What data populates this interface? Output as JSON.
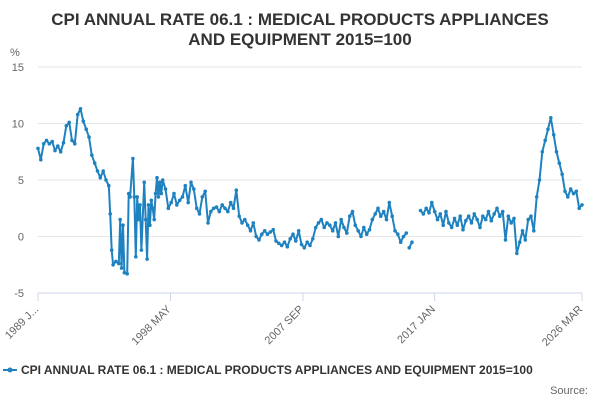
{
  "chart_data": {
    "type": "line",
    "title_lines": [
      "CPI ANNUAL RATE 06.1 : MEDICAL PRODUCTS APPLIANCES",
      "AND EQUIPMENT 2015=100"
    ],
    "y_unit": "%",
    "ylim": [
      -5,
      15
    ],
    "y_ticks": [
      -5,
      0,
      5,
      10,
      15
    ],
    "y_tick_labels": [
      "-5",
      "0",
      "5",
      "10",
      "15"
    ],
    "xlim": [
      1989.0,
      2026.2
    ],
    "x_ticks": [
      {
        "value": 1989.0,
        "label": "1989 J..."
      },
      {
        "value": 1998.35,
        "label": "1998 MAY"
      },
      {
        "value": 2007.7,
        "label": "2007 SEP"
      },
      {
        "value": 2017.0,
        "label": "2017 JAN"
      },
      {
        "value": 2026.2,
        "label": "2026 MAR"
      }
    ],
    "series": [
      {
        "name": "CPI ANNUAL RATE 06.1 : MEDICAL PRODUCTS APPLIANCES AND EQUIPMENT 2015=100",
        "color": "#1f82c0",
        "points": [
          [
            1989.0,
            7.8
          ],
          [
            1989.2,
            6.8
          ],
          [
            1989.4,
            8.2
          ],
          [
            1989.6,
            8.5
          ],
          [
            1989.8,
            8.2
          ],
          [
            1990.0,
            8.4
          ],
          [
            1990.2,
            7.6
          ],
          [
            1990.4,
            8.0
          ],
          [
            1990.6,
            7.5
          ],
          [
            1990.8,
            8.3
          ],
          [
            1991.0,
            9.8
          ],
          [
            1991.2,
            10.1
          ],
          [
            1991.4,
            8.5
          ],
          [
            1991.6,
            8.2
          ],
          [
            1991.8,
            10.8
          ],
          [
            1992.0,
            11.3
          ],
          [
            1992.2,
            10.2
          ],
          [
            1992.4,
            9.5
          ],
          [
            1992.6,
            8.8
          ],
          [
            1992.8,
            7.2
          ],
          [
            1993.0,
            6.5
          ],
          [
            1993.2,
            5.8
          ],
          [
            1993.4,
            5.2
          ],
          [
            1993.6,
            5.8
          ],
          [
            1993.8,
            5.0
          ],
          [
            1994.0,
            4.5
          ],
          [
            1994.1,
            2.0
          ],
          [
            1994.2,
            -1.2
          ],
          [
            1994.3,
            -2.5
          ],
          [
            1994.5,
            -2.2
          ],
          [
            1994.7,
            -2.4
          ],
          [
            1994.8,
            1.5
          ],
          [
            1994.9,
            -2.8
          ],
          [
            1995.0,
            1.0
          ],
          [
            1995.1,
            -3.2
          ],
          [
            1995.3,
            -3.3
          ],
          [
            1995.4,
            3.8
          ],
          [
            1995.5,
            3.5
          ],
          [
            1995.7,
            6.9
          ],
          [
            1995.8,
            3.5
          ],
          [
            1995.9,
            -1.8
          ],
          [
            1996.0,
            3.5
          ],
          [
            1996.1,
            1.5
          ],
          [
            1996.2,
            2.8
          ],
          [
            1996.3,
            -1.2
          ],
          [
            1996.5,
            4.8
          ],
          [
            1996.6,
            1.5
          ],
          [
            1996.7,
            -2.0
          ],
          [
            1996.8,
            2.8
          ],
          [
            1996.9,
            1.0
          ],
          [
            1997.0,
            3.2
          ],
          [
            1997.1,
            2.5
          ],
          [
            1997.2,
            1.5
          ],
          [
            1997.3,
            3.8
          ],
          [
            1997.4,
            5.2
          ],
          [
            1997.5,
            3.5
          ],
          [
            1997.6,
            4.8
          ],
          [
            1997.7,
            3.8
          ],
          [
            1997.8,
            5.0
          ],
          [
            1998.0,
            4.2
          ],
          [
            1998.2,
            2.5
          ],
          [
            1998.4,
            3.0
          ],
          [
            1998.6,
            3.8
          ],
          [
            1998.8,
            2.8
          ],
          [
            1999.0,
            3.2
          ],
          [
            1999.2,
            3.5
          ],
          [
            1999.4,
            4.5
          ],
          [
            1999.6,
            3.0
          ],
          [
            1999.8,
            4.8
          ],
          [
            2000.0,
            4.2
          ],
          [
            2000.2,
            2.5
          ],
          [
            2000.4,
            2.0
          ],
          [
            2000.6,
            3.5
          ],
          [
            2000.8,
            4.0
          ],
          [
            2001.0,
            1.2
          ],
          [
            2001.2,
            2.2
          ],
          [
            2001.4,
            2.5
          ],
          [
            2001.6,
            2.6
          ],
          [
            2001.8,
            2.2
          ],
          [
            2002.0,
            2.8
          ],
          [
            2002.2,
            2.5
          ],
          [
            2002.4,
            2.2
          ],
          [
            2002.6,
            3.0
          ],
          [
            2002.8,
            2.5
          ],
          [
            2003.0,
            4.1
          ],
          [
            2003.2,
            1.8
          ],
          [
            2003.4,
            1.2
          ],
          [
            2003.6,
            1.5
          ],
          [
            2003.8,
            1.0
          ],
          [
            2004.0,
            0.5
          ],
          [
            2004.2,
            1.2
          ],
          [
            2004.4,
            0.0
          ],
          [
            2004.6,
            -0.3
          ],
          [
            2004.8,
            0.2
          ],
          [
            2005.0,
            0.5
          ],
          [
            2005.2,
            0.2
          ],
          [
            2005.4,
            0.4
          ],
          [
            2005.6,
            0.6
          ],
          [
            2005.8,
            -0.4
          ],
          [
            2006.0,
            -0.6
          ],
          [
            2006.2,
            -0.8
          ],
          [
            2006.4,
            -0.5
          ],
          [
            2006.6,
            -0.9
          ],
          [
            2006.8,
            -0.2
          ],
          [
            2007.0,
            0.2
          ],
          [
            2007.2,
            -0.4
          ],
          [
            2007.4,
            0.5
          ],
          [
            2007.6,
            -0.7
          ],
          [
            2007.8,
            -1.0
          ],
          [
            2008.0,
            -0.5
          ],
          [
            2008.2,
            -0.8
          ],
          [
            2008.4,
            -0.2
          ],
          [
            2008.6,
            0.8
          ],
          [
            2008.8,
            1.2
          ],
          [
            2009.0,
            1.5
          ],
          [
            2009.2,
            0.8
          ],
          [
            2009.4,
            1.2
          ],
          [
            2009.6,
            1.0
          ],
          [
            2009.8,
            0.5
          ],
          [
            2010.0,
            1.2
          ],
          [
            2010.2,
            0.0
          ],
          [
            2010.4,
            1.5
          ],
          [
            2010.6,
            0.8
          ],
          [
            2010.8,
            0.3
          ],
          [
            2011.0,
            1.8
          ],
          [
            2011.2,
            2.2
          ],
          [
            2011.4,
            1.0
          ],
          [
            2011.6,
            0.5
          ],
          [
            2011.8,
            0.0
          ],
          [
            2012.0,
            0.8
          ],
          [
            2012.2,
            0.2
          ],
          [
            2012.4,
            0.6
          ],
          [
            2012.6,
            1.5
          ],
          [
            2012.8,
            2.0
          ],
          [
            2013.0,
            2.5
          ],
          [
            2013.2,
            1.8
          ],
          [
            2013.4,
            2.2
          ],
          [
            2013.6,
            1.5
          ],
          [
            2013.8,
            3.0
          ],
          [
            2014.0,
            1.8
          ],
          [
            2014.2,
            0.5
          ],
          [
            2014.4,
            0.2
          ],
          [
            2014.6,
            -0.5
          ],
          [
            2014.8,
            0.0
          ],
          [
            2015.0,
            0.3
          ]
        ],
        "points2": [
          [
            2015.2,
            -1.0
          ],
          [
            2015.4,
            -0.5
          ]
        ],
        "points3": [
          [
            2016.0,
            2.3
          ],
          [
            2016.2,
            2.0
          ],
          [
            2016.4,
            2.5
          ],
          [
            2016.6,
            2.1
          ],
          [
            2016.8,
            3.0
          ],
          [
            2017.0,
            2.2
          ],
          [
            2017.2,
            1.5
          ],
          [
            2017.4,
            2.0
          ],
          [
            2017.6,
            1.0
          ],
          [
            2017.8,
            2.2
          ],
          [
            2018.0,
            1.2
          ],
          [
            2018.2,
            0.8
          ],
          [
            2018.4,
            1.6
          ],
          [
            2018.6,
            1.0
          ],
          [
            2018.8,
            1.8
          ],
          [
            2019.0,
            0.6
          ],
          [
            2019.2,
            1.4
          ],
          [
            2019.4,
            1.8
          ],
          [
            2019.6,
            1.2
          ],
          [
            2019.8,
            2.0
          ],
          [
            2020.0,
            1.5
          ],
          [
            2020.2,
            0.8
          ],
          [
            2020.4,
            1.8
          ],
          [
            2020.6,
            1.5
          ],
          [
            2020.8,
            2.2
          ],
          [
            2021.0,
            1.4
          ],
          [
            2021.2,
            2.0
          ],
          [
            2021.4,
            2.5
          ],
          [
            2021.6,
            1.8
          ],
          [
            2021.8,
            2.2
          ],
          [
            2022.0,
            -0.3
          ],
          [
            2022.2,
            1.8
          ],
          [
            2022.4,
            1.2
          ],
          [
            2022.6,
            1.6
          ],
          [
            2022.8,
            -1.5
          ],
          [
            2023.0,
            -0.5
          ],
          [
            2023.2,
            0.5
          ],
          [
            2023.4,
            -0.3
          ],
          [
            2023.6,
            1.5
          ],
          [
            2023.8,
            1.8
          ],
          [
            2024.0,
            0.5
          ],
          [
            2024.2,
            3.5
          ],
          [
            2024.4,
            5.0
          ],
          [
            2024.6,
            7.5
          ],
          [
            2024.8,
            8.5
          ],
          [
            2025.0,
            9.5
          ],
          [
            2025.2,
            10.5
          ],
          [
            2025.4,
            9.0
          ],
          [
            2025.6,
            7.5
          ],
          [
            2025.8,
            6.5
          ],
          [
            2026.0,
            5.5
          ],
          [
            2026.2,
            4.0
          ],
          [
            2026.4,
            3.5
          ],
          [
            2026.6,
            4.2
          ],
          [
            2026.8,
            3.8
          ],
          [
            2027.0,
            4.0
          ],
          [
            2027.2,
            2.5
          ],
          [
            2027.4,
            2.8
          ]
        ]
      }
    ],
    "legend_label": "CPI ANNUAL RATE 06.1 : MEDICAL PRODUCTS APPLIANCES AND EQUIPMENT 2015=100",
    "source_label": "Source:"
  }
}
